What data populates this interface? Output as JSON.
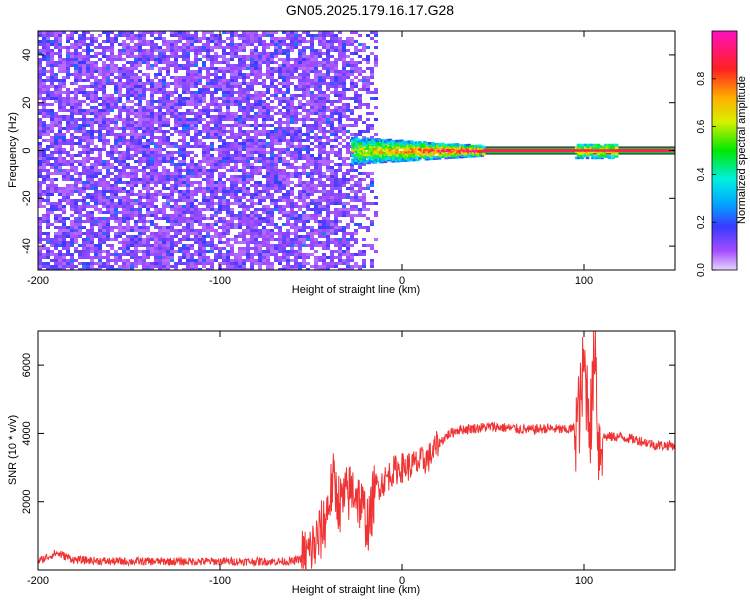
{
  "figure_title": "GN05.2025.179.16.17.G28",
  "chart_data": [
    {
      "type": "heatmap",
      "title": "",
      "xlabel": "Height of straight line (km)",
      "ylabel": "Frequency (Hz)",
      "xlim": [
        -200,
        150
      ],
      "ylim": [
        -50,
        50
      ],
      "xticks": [
        -200,
        -100,
        0,
        100
      ],
      "yticks": [
        -40,
        -20,
        0,
        20,
        40
      ],
      "colorbar": {
        "label": "Normalized spectral amplitude",
        "range": [
          0,
          1
        ],
        "ticks": [
          0.0,
          0.2,
          0.4,
          0.6,
          0.8
        ],
        "tick_labels": [
          "0.0",
          "0.2",
          "0.4",
          "0.6",
          "0.8"
        ],
        "colormap": "rainbow (purple-blue-cyan-green-yellow-orange-red-magenta)"
      },
      "regions": [
        {
          "x_range": [
            -200,
            -15
          ],
          "freq_range": [
            -50,
            50
          ],
          "amplitude": "low (0.1-0.25), noise"
        },
        {
          "x_range": [
            -28,
            45
          ],
          "freq_center": 0,
          "amplitude": "mixed 0.3-0.9, broadening signal"
        },
        {
          "x_range": [
            45,
            150
          ],
          "freq_center": 0,
          "amplitude": "~0.95 narrow line"
        },
        {
          "x_range": [
            95,
            118
          ],
          "freq_center": 0,
          "amplitude": "secondary broadening"
        }
      ],
      "grid": false
    },
    {
      "type": "line",
      "title": "",
      "xlabel": "Height of straight line (km)",
      "ylabel": "SNR (10 * v/v)",
      "xlim": [
        -200,
        150
      ],
      "ylim": [
        0,
        7000
      ],
      "xticks": [
        -200,
        -100,
        0,
        100
      ],
      "yticks": [
        2000,
        4000,
        6000
      ],
      "series": [
        {
          "color": "#f03232",
          "x": [
            -200,
            -190,
            -180,
            -160,
            -140,
            -120,
            -100,
            -80,
            -60,
            -52,
            -46,
            -42,
            -38,
            -34,
            -30,
            -26,
            -22,
            -18,
            -15,
            -10,
            -5,
            0,
            5,
            10,
            15,
            20,
            25,
            30,
            40,
            50,
            60,
            70,
            80,
            90,
            95,
            98,
            100,
            102,
            104,
            106,
            108,
            110,
            120,
            130,
            140,
            150
          ],
          "y": [
            250,
            500,
            300,
            250,
            250,
            250,
            250,
            250,
            250,
            400,
            900,
            1500,
            2600,
            1900,
            2200,
            2400,
            1800,
            1300,
            2400,
            2600,
            2900,
            3000,
            3050,
            3150,
            3300,
            3700,
            3950,
            4100,
            4150,
            4200,
            4150,
            4100,
            4150,
            4100,
            4150,
            4800,
            6000,
            5000,
            4300,
            7000,
            3600,
            3900,
            3900,
            3800,
            3650,
            3650
          ]
        }
      ],
      "grid": false
    }
  ]
}
